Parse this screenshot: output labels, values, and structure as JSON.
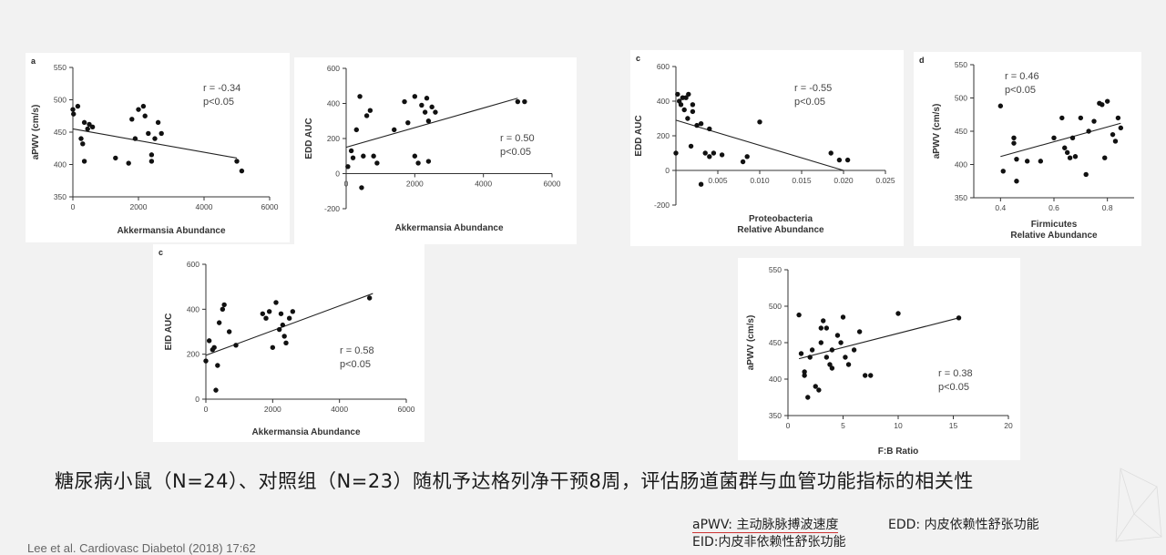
{
  "caption": "糖尿病小鼠（N=24）、对照组（N=23）随机予达格列净干预8周，评估肠道菌群与血管功能指标的相关性",
  "legend": {
    "apwv": "aPWV: 主动脉脉搏波速度",
    "edd": "EDD: 内皮依赖性舒张功能",
    "eid": "EID:内皮非依赖性舒张功能"
  },
  "citation": "Lee et al. Cardiovasc Diabetol (2018) 17:62",
  "chart_data": [
    {
      "id": "a",
      "type": "scatter",
      "panel_label": "a",
      "xlabel": "Akkermansia Abundance",
      "ylabel": "aPWV (cm/s)",
      "xlim": [
        0,
        6000
      ],
      "ylim": [
        350,
        550
      ],
      "xticks": [
        "0",
        "2000",
        "4000",
        "6000"
      ],
      "yticks": [
        "350",
        "400",
        "450",
        "500",
        "550"
      ],
      "annotation": [
        "r = -0.34",
        "p<0.05"
      ],
      "trend": [
        [
          0,
          455
        ],
        [
          5000,
          410
        ]
      ],
      "points": [
        [
          0,
          485
        ],
        [
          20,
          478
        ],
        [
          150,
          490
        ],
        [
          250,
          440
        ],
        [
          300,
          432
        ],
        [
          350,
          465
        ],
        [
          350,
          405
        ],
        [
          450,
          455
        ],
        [
          500,
          462
        ],
        [
          600,
          458
        ],
        [
          1300,
          410
        ],
        [
          1700,
          402
        ],
        [
          1800,
          470
        ],
        [
          1900,
          440
        ],
        [
          2000,
          485
        ],
        [
          2150,
          490
        ],
        [
          2200,
          475
        ],
        [
          2300,
          448
        ],
        [
          2400,
          415
        ],
        [
          2400,
          405
        ],
        [
          2500,
          440
        ],
        [
          2600,
          465
        ],
        [
          2700,
          448
        ],
        [
          5000,
          405
        ],
        [
          5150,
          390
        ]
      ]
    },
    {
      "id": "b",
      "type": "scatter",
      "panel_label": "",
      "xlabel": "Akkermansia Abundance",
      "ylabel": "EDD AUC",
      "xlim": [
        0,
        6000
      ],
      "ylim": [
        -200,
        600
      ],
      "xticks": [
        "0",
        "2000",
        "4000",
        "6000"
      ],
      "yticks": [
        "-200",
        "0",
        "200",
        "400",
        "600"
      ],
      "annotation": [
        "r = 0.50",
        "p<0.05"
      ],
      "trend": [
        [
          0,
          150
        ],
        [
          5000,
          430
        ]
      ],
      "points": [
        [
          50,
          40
        ],
        [
          150,
          130
        ],
        [
          200,
          90
        ],
        [
          300,
          250
        ],
        [
          400,
          440
        ],
        [
          450,
          -80
        ],
        [
          500,
          100
        ],
        [
          600,
          330
        ],
        [
          700,
          360
        ],
        [
          800,
          100
        ],
        [
          900,
          60
        ],
        [
          1400,
          250
        ],
        [
          1700,
          410
        ],
        [
          1800,
          290
        ],
        [
          2000,
          440
        ],
        [
          2000,
          100
        ],
        [
          2100,
          60
        ],
        [
          2200,
          390
        ],
        [
          2300,
          350
        ],
        [
          2350,
          430
        ],
        [
          2400,
          300
        ],
        [
          2400,
          70
        ],
        [
          2500,
          380
        ],
        [
          2600,
          350
        ],
        [
          5000,
          410
        ],
        [
          5200,
          410
        ]
      ]
    },
    {
      "id": "c",
      "type": "scatter",
      "panel_label": "c",
      "xlabel": "Proteobacteria Relative Abundance",
      "ylabel": "EDD AUC",
      "xlim": [
        0,
        0.025
      ],
      "ylim": [
        -200,
        600
      ],
      "xticks": [
        "0.005",
        "0.010",
        "0.015",
        "0.020",
        "0.025"
      ],
      "yticks": [
        "-200",
        "0",
        "200",
        "400",
        "600"
      ],
      "annotation": [
        "r = -0.55",
        "p<0.05"
      ],
      "trend": [
        [
          0,
          290
        ],
        [
          0.02,
          0
        ]
      ],
      "points": [
        [
          0,
          100
        ],
        [
          0.0002,
          440
        ],
        [
          0.0004,
          400
        ],
        [
          0.0006,
          380
        ],
        [
          0.0008,
          420
        ],
        [
          0.001,
          350
        ],
        [
          0.0012,
          420
        ],
        [
          0.0014,
          300
        ],
        [
          0.0015,
          440
        ],
        [
          0.0018,
          140
        ],
        [
          0.002,
          380
        ],
        [
          0.002,
          340
        ],
        [
          0.0025,
          260
        ],
        [
          0.003,
          270
        ],
        [
          0.003,
          -80
        ],
        [
          0.0035,
          100
        ],
        [
          0.004,
          80
        ],
        [
          0.004,
          240
        ],
        [
          0.0045,
          100
        ],
        [
          0.0055,
          90
        ],
        [
          0.008,
          50
        ],
        [
          0.0085,
          80
        ],
        [
          0.01,
          280
        ],
        [
          0.0185,
          100
        ],
        [
          0.0195,
          60
        ],
        [
          0.0205,
          60
        ]
      ]
    },
    {
      "id": "d",
      "type": "scatter",
      "panel_label": "d",
      "xlabel": "Firmicutes Relative Abundance",
      "ylabel": "aPWV (cm/s)",
      "xlim": [
        0.3,
        0.9
      ],
      "ylim": [
        350,
        550
      ],
      "xticks": [
        "0.4",
        "0.6",
        "0.8"
      ],
      "yticks": [
        "350",
        "400",
        "450",
        "500",
        "550"
      ],
      "annotation": [
        "r = 0.46",
        "p<0.05"
      ],
      "trend": [
        [
          0.4,
          412
        ],
        [
          0.85,
          462
        ]
      ],
      "points": [
        [
          0.4,
          488
        ],
        [
          0.41,
          390
        ],
        [
          0.45,
          440
        ],
        [
          0.45,
          432
        ],
        [
          0.46,
          408
        ],
        [
          0.46,
          375
        ],
        [
          0.5,
          405
        ],
        [
          0.55,
          405
        ],
        [
          0.6,
          440
        ],
        [
          0.63,
          470
        ],
        [
          0.64,
          425
        ],
        [
          0.65,
          418
        ],
        [
          0.66,
          410
        ],
        [
          0.67,
          440
        ],
        [
          0.68,
          412
        ],
        [
          0.7,
          470
        ],
        [
          0.72,
          385
        ],
        [
          0.73,
          450
        ],
        [
          0.75,
          465
        ],
        [
          0.77,
          492
        ],
        [
          0.78,
          490
        ],
        [
          0.79,
          410
        ],
        [
          0.8,
          495
        ],
        [
          0.82,
          445
        ],
        [
          0.83,
          435
        ],
        [
          0.84,
          470
        ],
        [
          0.85,
          455
        ]
      ]
    },
    {
      "id": "e",
      "type": "scatter",
      "panel_label": "c",
      "xlabel": "Akkermansia Abundance",
      "ylabel": "EID AUC",
      "xlim": [
        0,
        6000
      ],
      "ylim": [
        0,
        600
      ],
      "xticks": [
        "0",
        "2000",
        "4000",
        "6000"
      ],
      "yticks": [
        "0",
        "200",
        "400",
        "600"
      ],
      "annotation": [
        "r = 0.58",
        "p<0.05"
      ],
      "trend": [
        [
          0,
          195
        ],
        [
          5000,
          470
        ]
      ],
      "points": [
        [
          0,
          170
        ],
        [
          100,
          260
        ],
        [
          200,
          220
        ],
        [
          250,
          230
        ],
        [
          300,
          40
        ],
        [
          350,
          150
        ],
        [
          400,
          340
        ],
        [
          500,
          400
        ],
        [
          550,
          420
        ],
        [
          700,
          300
        ],
        [
          900,
          240
        ],
        [
          1700,
          380
        ],
        [
          1800,
          360
        ],
        [
          1900,
          390
        ],
        [
          2000,
          230
        ],
        [
          2100,
          430
        ],
        [
          2200,
          310
        ],
        [
          2250,
          380
        ],
        [
          2300,
          330
        ],
        [
          2350,
          280
        ],
        [
          2400,
          250
        ],
        [
          2500,
          360
        ],
        [
          2600,
          390
        ],
        [
          4900,
          450
        ]
      ]
    },
    {
      "id": "f",
      "type": "scatter",
      "panel_label": "",
      "xlabel": "F:B Ratio",
      "ylabel": "aPWV (cm/s)",
      "xlim": [
        0,
        20
      ],
      "ylim": [
        350,
        550
      ],
      "xticks": [
        "0",
        "5",
        "10",
        "15",
        "20"
      ],
      "yticks": [
        "350",
        "400",
        "450",
        "500",
        "550"
      ],
      "annotation": [
        "r = 0.38",
        "p<0.05"
      ],
      "trend": [
        [
          1,
          428
        ],
        [
          15.5,
          484
        ]
      ],
      "points": [
        [
          1,
          488
        ],
        [
          1.2,
          435
        ],
        [
          1.5,
          410
        ],
        [
          1.5,
          405
        ],
        [
          1.8,
          375
        ],
        [
          2,
          430
        ],
        [
          2.2,
          440
        ],
        [
          2.5,
          390
        ],
        [
          2.8,
          385
        ],
        [
          3,
          470
        ],
        [
          3,
          450
        ],
        [
          3.2,
          480
        ],
        [
          3.5,
          470
        ],
        [
          3.5,
          430
        ],
        [
          3.8,
          420
        ],
        [
          4,
          440
        ],
        [
          4,
          415
        ],
        [
          4.5,
          460
        ],
        [
          4.8,
          450
        ],
        [
          5,
          485
        ],
        [
          5.2,
          430
        ],
        [
          5.5,
          420
        ],
        [
          6,
          440
        ],
        [
          6.5,
          465
        ],
        [
          7,
          405
        ],
        [
          7.5,
          405
        ],
        [
          10,
          490
        ],
        [
          15.5,
          484
        ]
      ]
    }
  ]
}
